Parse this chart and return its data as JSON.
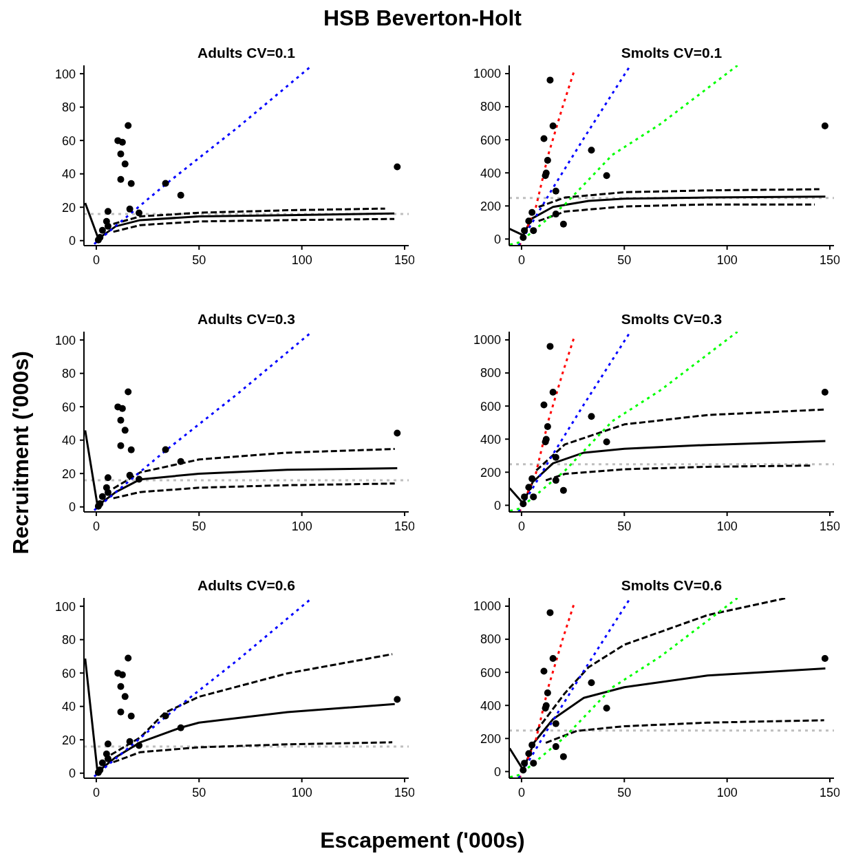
{
  "chart_data": [
    {
      "type": "scatter",
      "title": "Adults CV=0.1",
      "annotations": [
        "HSB Beverton-Holt"
      ],
      "xlabel": "Escapement ('000s)",
      "ylabel": "Recruitment ('000s)",
      "xlim": [
        -6,
        152
      ],
      "xticks": [
        0,
        50,
        100,
        150
      ],
      "ylim": [
        -3,
        105
      ],
      "yticks": [
        0,
        20,
        40,
        60,
        80,
        100
      ],
      "ref_lines": [
        {
          "axis": "y",
          "value": 16,
          "color": "#bebebe",
          "line_style": "dotted"
        }
      ],
      "series": [
        {
          "color": "#000000",
          "marker": "circle",
          "x": [
            146.4,
            15.5,
            10.5,
            12.7,
            11.9,
            14.0,
            11.9,
            17.0,
            33.7,
            41.1,
            16.3,
            20.8,
            5.7,
            5.0,
            5.7,
            3.0,
            1.8,
            1.0
          ],
          "values": [
            44.2,
            68.9,
            59.9,
            58.9,
            51.9,
            45.9,
            36.7,
            34.2,
            34.3,
            27.2,
            18.9,
            16.6,
            17.5,
            11.5,
            8.6,
            6.2,
            1.9,
            0.4
          ]
        },
        {
          "type": "line",
          "color": "#000000",
          "line_style": "solid",
          "x": [
            -5.4,
            1,
            9.5,
            21.4,
            50,
            92.9,
            145
          ],
          "values": [
            22.6,
            1.2,
            8.6,
            12.3,
            14.5,
            15.2,
            16.3
          ]
        },
        {
          "type": "line",
          "color": "#000000",
          "line_style": "dashed",
          "x": [
            8.3,
            21.4,
            50,
            92.9,
            140.5
          ],
          "values": [
            10,
            14.5,
            16.7,
            18.2,
            19.2
          ]
        },
        {
          "type": "line",
          "color": "#000000",
          "line_style": "dashed",
          "x": [
            8.3,
            21.4,
            50,
            92.9,
            145
          ],
          "values": [
            5.3,
            9.3,
            11.5,
            12.3,
            13
          ]
        },
        {
          "type": "line",
          "color": "#0000ff",
          "line_style": "dotted",
          "x": [
            -1,
            34,
            69,
            104
          ],
          "values": [
            -2,
            34,
            68,
            104
          ]
        }
      ]
    },
    {
      "type": "scatter",
      "title": "Smolts CV=0.1",
      "xlim": [
        -6,
        152
      ],
      "xticks": [
        0,
        50,
        100,
        150
      ],
      "ylim": [
        -40,
        1050
      ],
      "yticks": [
        0,
        200,
        400,
        600,
        800,
        1000
      ],
      "ref_lines": [
        {
          "axis": "y",
          "value": 248,
          "color": "#bebebe",
          "line_style": "dotted"
        }
      ],
      "series": [
        {
          "color": "#000000",
          "marker": "circle",
          "x": [
            147.6,
            13.9,
            15.3,
            10.9,
            12.7,
            12.0,
            11.6,
            34.0,
            41.4,
            16.7,
            16.7,
            20.4,
            5.1,
            3.5,
            5.8,
            1.4,
            0.8
          ],
          "values": [
            684,
            961,
            684,
            607,
            476,
            399,
            383,
            537,
            383,
            290,
            151,
            90,
            161,
            109,
            51,
            51,
            9
          ]
        },
        {
          "type": "line",
          "color": "#000000",
          "line_style": "solid",
          "x": [
            -5.8,
            0.8,
            4.9,
            15.3,
            32.6,
            50,
            90.5,
            147.8
          ],
          "values": [
            61,
            23,
            123,
            194,
            230,
            244,
            251,
            256
          ]
        },
        {
          "type": "line",
          "color": "#000000",
          "line_style": "dashed",
          "x": [
            8.3,
            21.1,
            50,
            90.5,
            144.9
          ],
          "values": [
            194,
            251,
            283,
            294,
            301
          ]
        },
        {
          "type": "line",
          "color": "#000000",
          "line_style": "dashed",
          "x": [
            8.3,
            21.1,
            50,
            90.5,
            142.6
          ],
          "values": [
            109,
            166,
            197,
            209,
            209
          ]
        },
        {
          "type": "line",
          "color": "#ff0000",
          "line_style": "dotted",
          "x": [
            -1,
            7,
            13,
            20,
            25.7
          ],
          "values": [
            -40,
            194,
            509,
            800,
            1020
          ]
        },
        {
          "type": "line",
          "color": "#0000ff",
          "line_style": "dotted",
          "x": [
            -1.5,
            15.3,
            30.3,
            52.9
          ],
          "values": [
            -40,
            309,
            609,
            1049
          ]
        },
        {
          "type": "line",
          "color": "#00ff00",
          "line_style": "dotted",
          "x": [
            -5.6,
            -0.9,
            21.1,
            44.2,
            67.4,
            105
          ],
          "values": [
            -34,
            -20,
            209,
            509,
            694,
            1049
          ]
        }
      ]
    },
    {
      "type": "scatter",
      "title": "Adults CV=0.3",
      "xlim": [
        -6,
        152
      ],
      "xticks": [
        0,
        50,
        100,
        150
      ],
      "ylim": [
        -3,
        105
      ],
      "yticks": [
        0,
        20,
        40,
        60,
        80,
        100
      ],
      "ref_lines": [
        {
          "axis": "y",
          "value": 16,
          "color": "#bebebe",
          "line_style": "dotted"
        }
      ],
      "series": [
        {
          "color": "#000000",
          "marker": "circle",
          "x": [
            146.4,
            15.5,
            10.5,
            12.7,
            11.9,
            14.0,
            11.9,
            17.0,
            33.7,
            41.1,
            16.3,
            20.8,
            5.7,
            5.0,
            5.7,
            3.0,
            1.8,
            1.0
          ],
          "values": [
            44.2,
            68.9,
            59.9,
            58.9,
            51.9,
            45.9,
            36.7,
            34.2,
            34.3,
            27.2,
            18.9,
            16.6,
            17.5,
            11.5,
            8.6,
            6.2,
            1.9,
            0.4
          ]
        },
        {
          "type": "line",
          "color": "#000000",
          "line_style": "solid",
          "x": [
            -5.4,
            0.6,
            9.5,
            21.4,
            50,
            92.9,
            146.4
          ],
          "values": [
            45.8,
            0.7,
            8.9,
            16.5,
            19.9,
            22.2,
            23.2
          ]
        },
        {
          "type": "line",
          "color": "#000000",
          "line_style": "dashed",
          "x": [
            8.3,
            21.4,
            50,
            92.9,
            145.2
          ],
          "values": [
            11,
            20.7,
            28.4,
            32.5,
            34.7
          ]
        },
        {
          "type": "line",
          "color": "#000000",
          "line_style": "dashed",
          "x": [
            8.3,
            21.4,
            50,
            92.9,
            145.2
          ],
          "values": [
            5.2,
            8.9,
            11.5,
            13,
            14
          ]
        },
        {
          "type": "line",
          "color": "#0000ff",
          "line_style": "dotted",
          "x": [
            -1,
            34,
            69,
            104
          ],
          "values": [
            -2,
            34,
            68,
            104
          ]
        }
      ]
    },
    {
      "type": "scatter",
      "title": "Smolts CV=0.3",
      "xlim": [
        -6,
        152
      ],
      "xticks": [
        0,
        50,
        100,
        150
      ],
      "ylim": [
        -40,
        1050
      ],
      "yticks": [
        0,
        200,
        400,
        600,
        800,
        1000
      ],
      "ref_lines": [
        {
          "axis": "y",
          "value": 248,
          "color": "#bebebe",
          "line_style": "dotted"
        }
      ],
      "series": [
        {
          "color": "#000000",
          "marker": "circle",
          "x": [
            147.6,
            13.9,
            15.3,
            10.9,
            12.7,
            12.0,
            11.6,
            34.0,
            41.4,
            16.7,
            16.7,
            20.4,
            5.1,
            3.5,
            5.8,
            1.4,
            0.8
          ],
          "values": [
            684,
            961,
            684,
            607,
            476,
            399,
            383,
            537,
            383,
            290,
            151,
            90,
            161,
            109,
            51,
            51,
            9
          ]
        },
        {
          "type": "line",
          "color": "#000000",
          "line_style": "solid",
          "x": [
            -5.8,
            0.8,
            5.4,
            15.3,
            30.3,
            50,
            90.5,
            147.8
          ],
          "values": [
            104,
            11,
            140,
            254,
            318,
            342,
            365,
            389
          ]
        },
        {
          "type": "line",
          "color": "#000000",
          "line_style": "dashed",
          "x": [
            7.2,
            21.1,
            50,
            90.5,
            147.2
          ],
          "values": [
            211,
            368,
            489,
            546,
            579
          ]
        },
        {
          "type": "line",
          "color": "#000000",
          "line_style": "dashed",
          "x": [
            11.8,
            21.1,
            50,
            90.5,
            141.4
          ],
          "values": [
            151,
            190,
            218,
            233,
            240
          ]
        },
        {
          "type": "line",
          "color": "#ff0000",
          "line_style": "dotted",
          "x": [
            -1,
            7,
            13,
            20,
            25.7
          ],
          "values": [
            -40,
            194,
            509,
            800,
            1020
          ]
        },
        {
          "type": "line",
          "color": "#0000ff",
          "line_style": "dotted",
          "x": [
            -1.5,
            15.3,
            30.3,
            52.9
          ],
          "values": [
            -40,
            309,
            609,
            1049
          ]
        },
        {
          "type": "line",
          "color": "#00ff00",
          "line_style": "dotted",
          "x": [
            -5.6,
            -0.9,
            21.1,
            44.2,
            67.4,
            105
          ],
          "values": [
            -34,
            -20,
            209,
            509,
            694,
            1049
          ]
        }
      ]
    },
    {
      "type": "scatter",
      "title": "Adults CV=0.6",
      "xlim": [
        -6,
        152
      ],
      "xticks": [
        0,
        50,
        100,
        150
      ],
      "ylim": [
        -3,
        105
      ],
      "yticks": [
        0,
        20,
        40,
        60,
        80,
        100
      ],
      "ref_lines": [
        {
          "axis": "y",
          "value": 16,
          "color": "#bebebe",
          "line_style": "dotted"
        }
      ],
      "series": [
        {
          "color": "#000000",
          "marker": "circle",
          "x": [
            146.4,
            15.5,
            10.5,
            12.7,
            11.9,
            14.0,
            11.9,
            17.0,
            33.7,
            41.1,
            16.3,
            20.8,
            5.7,
            5.0,
            5.7,
            3.0,
            1.8,
            1.0
          ],
          "values": [
            44.2,
            68.9,
            59.9,
            58.9,
            51.9,
            45.9,
            36.7,
            34.2,
            34.3,
            27.2,
            18.9,
            16.6,
            17.5,
            11.5,
            8.6,
            6.2,
            1.9,
            0.4
          ]
        },
        {
          "type": "line",
          "color": "#000000",
          "line_style": "solid",
          "x": [
            -5.4,
            0.6,
            9.5,
            21.4,
            41.1,
            50,
            92.9,
            145.2
          ],
          "values": [
            68.7,
            0.7,
            9.6,
            18.5,
            27.3,
            30.3,
            36.6,
            41.4
          ]
        },
        {
          "type": "line",
          "color": "#000000",
          "line_style": "dashed",
          "x": [
            7.1,
            21.4,
            33.3,
            50,
            92.9,
            144
          ],
          "values": [
            11,
            21.4,
            36.2,
            45.8,
            59.8,
            71.3
          ]
        },
        {
          "type": "line",
          "color": "#000000",
          "line_style": "dashed",
          "x": [
            8.3,
            21.4,
            50,
            92.9,
            144
          ],
          "values": [
            6.6,
            12.6,
            15.5,
            17.3,
            18.5
          ]
        },
        {
          "type": "line",
          "color": "#0000ff",
          "line_style": "dotted",
          "x": [
            -1,
            34,
            69,
            104
          ],
          "values": [
            -2,
            34,
            68,
            104
          ]
        }
      ]
    },
    {
      "type": "scatter",
      "title": "Smolts CV=0.6",
      "xlim": [
        -6,
        152
      ],
      "xticks": [
        0,
        50,
        100,
        150
      ],
      "ylim": [
        -40,
        1050
      ],
      "yticks": [
        0,
        200,
        400,
        600,
        800,
        1000
      ],
      "ref_lines": [
        {
          "axis": "y",
          "value": 248,
          "color": "#bebebe",
          "line_style": "dotted"
        }
      ],
      "series": [
        {
          "color": "#000000",
          "marker": "circle",
          "x": [
            147.6,
            13.9,
            15.3,
            10.9,
            12.7,
            12.0,
            11.6,
            34.0,
            41.4,
            16.7,
            16.7,
            20.4,
            5.1,
            3.5,
            5.8,
            1.4,
            0.8
          ],
          "values": [
            684,
            961,
            684,
            607,
            476,
            399,
            383,
            537,
            383,
            290,
            151,
            90,
            161,
            109,
            51,
            51,
            9
          ]
        },
        {
          "type": "line",
          "color": "#000000",
          "line_style": "solid",
          "x": [
            -5.8,
            0.8,
            6,
            15.3,
            30.3,
            50,
            90.5,
            147.8
          ],
          "values": [
            141,
            10,
            174,
            317,
            446,
            510,
            581,
            624
          ]
        },
        {
          "type": "line",
          "color": "#000000",
          "line_style": "dashed",
          "x": [
            7.2,
            21.1,
            32.6,
            50,
            90.5,
            128.7
          ],
          "values": [
            246,
            474,
            631,
            767,
            946,
            1049
          ]
        },
        {
          "type": "line",
          "color": "#000000",
          "line_style": "dashed",
          "x": [
            11.8,
            26.9,
            50,
            90.5,
            147.2
          ],
          "values": [
            174,
            246,
            274,
            296,
            310
          ]
        },
        {
          "type": "line",
          "color": "#ff0000",
          "line_style": "dotted",
          "x": [
            -1,
            7,
            13,
            20,
            25.7
          ],
          "values": [
            -40,
            194,
            509,
            800,
            1020
          ]
        },
        {
          "type": "line",
          "color": "#0000ff",
          "line_style": "dotted",
          "x": [
            -1.5,
            15.3,
            30.3,
            52.9
          ],
          "values": [
            -40,
            309,
            609,
            1049
          ]
        },
        {
          "type": "line",
          "color": "#00ff00",
          "line_style": "dotted",
          "x": [
            -5.6,
            -0.9,
            21.1,
            44.2,
            67.4,
            105
          ],
          "values": [
            -34,
            -20,
            209,
            509,
            694,
            1049
          ]
        }
      ]
    }
  ]
}
